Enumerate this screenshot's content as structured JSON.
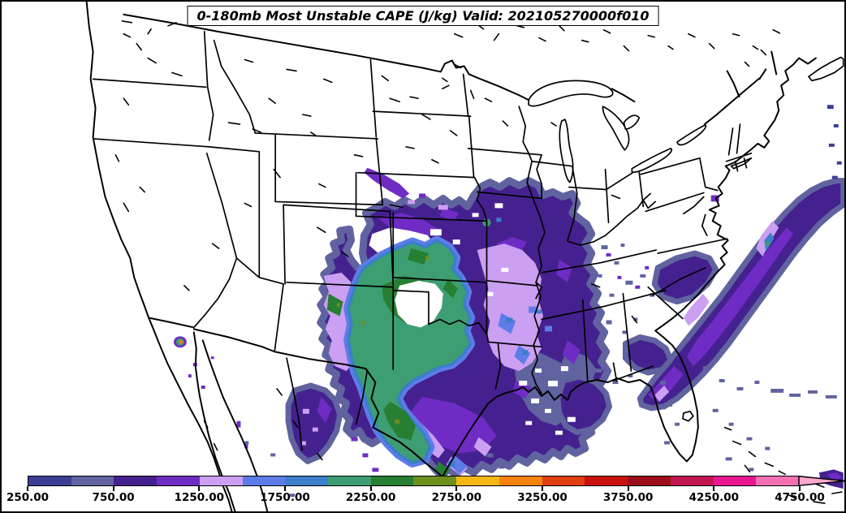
{
  "title": "0-180mb Most Unstable CAPE (J/kg) Valid: 202105270000f010",
  "palette": {
    "segment_colors": [
      "#3c3e96",
      "#60639f",
      "#45218f",
      "#6f2cc4",
      "#cb9ff2",
      "#5e7ce8",
      "#3b7ecb",
      "#3d9e72",
      "#267f33",
      "#6d8f1e",
      "#f5b713",
      "#f8820e",
      "#e03d10",
      "#cc1210",
      "#9e0e1a",
      "#c11753",
      "#e8178f",
      "#f470b2"
    ],
    "extend_color": "#f9a9cf",
    "background": "#ffffff",
    "boundary_color": "#000000"
  },
  "colorbar": {
    "orientation": "horizontal",
    "units": "J/kg",
    "levels": [
      250,
      500,
      750,
      1000,
      1250,
      1500,
      1750,
      2000,
      2250,
      2500,
      2750,
      3000,
      3250,
      3500,
      3750,
      4000,
      4250,
      4500,
      4750
    ],
    "tick_labels": [
      "250.00",
      "750.00",
      "1250.00",
      "1750.00",
      "2250.00",
      "2750.00",
      "3250.00",
      "3750.00",
      "4250.00",
      "4750.00"
    ],
    "segment_colors": [
      "#3c3e96",
      "#60639f",
      "#45218f",
      "#6f2cc4",
      "#cb9ff2",
      "#5e7ce8",
      "#3b7ecb",
      "#3d9e72",
      "#267f33",
      "#6d8f1e",
      "#f5b713",
      "#f8820e",
      "#e03d10",
      "#cc1210",
      "#9e0e1a",
      "#c11753",
      "#e8178f",
      "#f470b2"
    ],
    "extend": "max",
    "extend_color": "#f9a9cf"
  },
  "chart_data": {
    "type": "heatmap",
    "title": "0-180mb Most Unstable CAPE (J/kg) Valid: 202105270000f010",
    "parameter": "Most Unstable CAPE",
    "layer": "0-180mb",
    "units": "J/kg",
    "valid": "202105270000f010",
    "geography": "CONUS with southern Canada, northern Mexico, Gulf of Mexico, Bahamas; black state/coast boundaries on white",
    "contour_levels": [
      250,
      500,
      750,
      1000,
      1250,
      1500,
      1750,
      2000,
      2250,
      2500,
      2750,
      3000,
      3250,
      3500,
      3750,
      4000,
      4250,
      4500,
      4750
    ],
    "contour_colors": [
      "#3c3e96",
      "#60639f",
      "#45218f",
      "#6f2cc4",
      "#cb9ff2",
      "#5e7ce8",
      "#3b7ecb",
      "#3d9e72",
      "#267f33",
      "#6d8f1e",
      "#f5b713",
      "#f8820e",
      "#e03d10",
      "#cc1210",
      "#9e0e1a",
      "#c11753",
      "#e8178f",
      "#f470b2"
    ],
    "colorbar_tick_labels": [
      "250.00",
      "750.00",
      "1250.00",
      "1750.00",
      "2250.00",
      "2750.00",
      "3250.00",
      "3750.00",
      "4250.00",
      "4750.00"
    ],
    "legend_position": "bottom",
    "notable_features": [
      {
        "region": "Central Plains: Kansas / Oklahoma / Texas Panhandle",
        "cape_jkg": "2000-2500 broad core, dark-green 2250-2500 patches, olive specks to ~2750",
        "note": "white hole (<250) over south-central Kansas / north Oklahoma"
      },
      {
        "region": "Central Texas down to Texas coast",
        "cape_jkg": "2000-2500 band connected to Plains core"
      },
      {
        "region": "Eastern New Mexico",
        "cape_jkg": "small 2250-2500 pocket"
      },
      {
        "region": "Missouri / Arkansas",
        "cape_jkg": "1250-2000 lavender-blue pockets in 750-1250 purple field"
      },
      {
        "region": "Nebraska / South Dakota / Iowa",
        "cape_jkg": "500-1250 with violet streaks"
      },
      {
        "region": "Lower Mississippi Valley and central Gulf Coast",
        "cape_jkg": "250-1250 speckled"
      },
      {
        "region": "Western Atlantic plume off Carolinas / Mid-Atlantic",
        "cape_jkg": "750-1500 band with 1500-2250 streaks"
      },
      {
        "region": "Tennessee / Kentucky",
        "cape_jkg": "250-1250 scattered specks"
      },
      {
        "region": "Chihuahua / Coahuila, Mexico",
        "cape_jkg": "750-1500"
      },
      {
        "region": "Sonora/Arizona border",
        "cape_jkg": "tiny spot peaking 3000-3250"
      }
    ]
  }
}
